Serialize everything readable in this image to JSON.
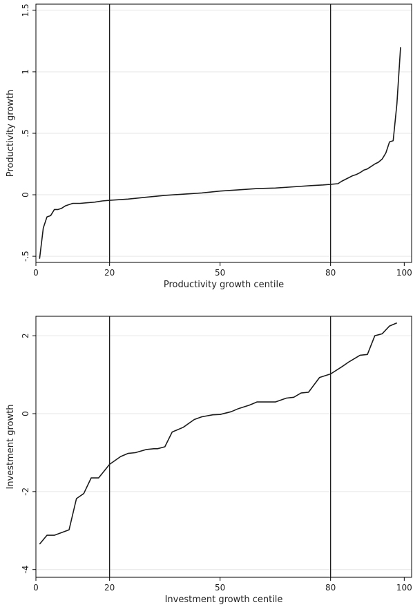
{
  "chart_data": [
    {
      "type": "line",
      "title": "",
      "xlabel": "Productivity growth centile",
      "ylabel": "Productivity growth",
      "xlim": [
        0,
        102
      ],
      "ylim": [
        -0.55,
        1.55
      ],
      "xticks": [
        0,
        20,
        50,
        80,
        100
      ],
      "xtick_labels": [
        "0",
        "20",
        "50",
        "80",
        "100"
      ],
      "yticks": [
        -0.5,
        0,
        0.5,
        1,
        1.5
      ],
      "ytick_labels": [
        "-.5",
        "0",
        ".5",
        "1",
        "1.5"
      ],
      "grid": "horizontal",
      "reference_lines_x": [
        20,
        80
      ],
      "color": "#1a1a1a",
      "x": [
        1,
        2,
        3,
        4,
        5,
        6,
        7,
        8,
        9,
        10,
        12,
        14,
        16,
        18,
        20,
        25,
        30,
        35,
        40,
        45,
        50,
        55,
        60,
        65,
        70,
        75,
        78,
        80,
        82,
        83,
        85,
        86,
        87,
        88,
        89,
        90,
        91,
        92,
        93,
        94,
        95,
        96,
        97,
        98,
        99
      ],
      "y": [
        -0.52,
        -0.27,
        -0.18,
        -0.17,
        -0.12,
        -0.12,
        -0.11,
        -0.09,
        -0.08,
        -0.07,
        -0.07,
        -0.065,
        -0.06,
        -0.05,
        -0.045,
        -0.035,
        -0.02,
        -0.005,
        0.005,
        0.015,
        0.03,
        0.04,
        0.05,
        0.055,
        0.065,
        0.075,
        0.08,
        0.085,
        0.09,
        0.11,
        0.14,
        0.155,
        0.165,
        0.18,
        0.2,
        0.21,
        0.23,
        0.25,
        0.265,
        0.29,
        0.34,
        0.43,
        0.44,
        0.74,
        1.2
      ]
    },
    {
      "type": "line",
      "title": "",
      "xlabel": "Investment growth centile",
      "ylabel": "Investment growth",
      "xlim": [
        0,
        102
      ],
      "ylim": [
        -4.2,
        2.5
      ],
      "xticks": [
        0,
        20,
        50,
        80,
        100
      ],
      "xtick_labels": [
        "0",
        "20",
        "50",
        "80",
        "100"
      ],
      "yticks": [
        -4,
        -2,
        0,
        2
      ],
      "ytick_labels": [
        "-4",
        "-2",
        "0",
        "2"
      ],
      "grid": "horizontal",
      "reference_lines_x": [
        20,
        80
      ],
      "color": "#1a1a1a",
      "x": [
        1,
        3,
        5,
        9,
        11,
        13,
        15,
        17,
        20,
        23,
        25,
        27,
        30,
        32,
        33,
        35,
        37,
        40,
        43,
        45,
        48,
        50,
        53,
        55,
        58,
        60,
        63,
        65,
        68,
        70,
        72,
        74,
        77,
        80,
        83,
        85,
        88,
        90,
        92,
        94,
        96,
        98
      ],
      "y": [
        -3.35,
        -3.12,
        -3.12,
        -2.98,
        -2.18,
        -2.05,
        -1.65,
        -1.65,
        -1.3,
        -1.1,
        -1.02,
        -1.0,
        -0.92,
        -0.9,
        -0.9,
        -0.85,
        -0.47,
        -0.35,
        -0.15,
        -0.08,
        -0.03,
        -0.02,
        0.05,
        0.13,
        0.22,
        0.3,
        0.3,
        0.3,
        0.4,
        0.42,
        0.53,
        0.55,
        0.93,
        1.02,
        1.2,
        1.33,
        1.5,
        1.52,
        2.0,
        2.05,
        2.25,
        2.33
      ]
    }
  ]
}
